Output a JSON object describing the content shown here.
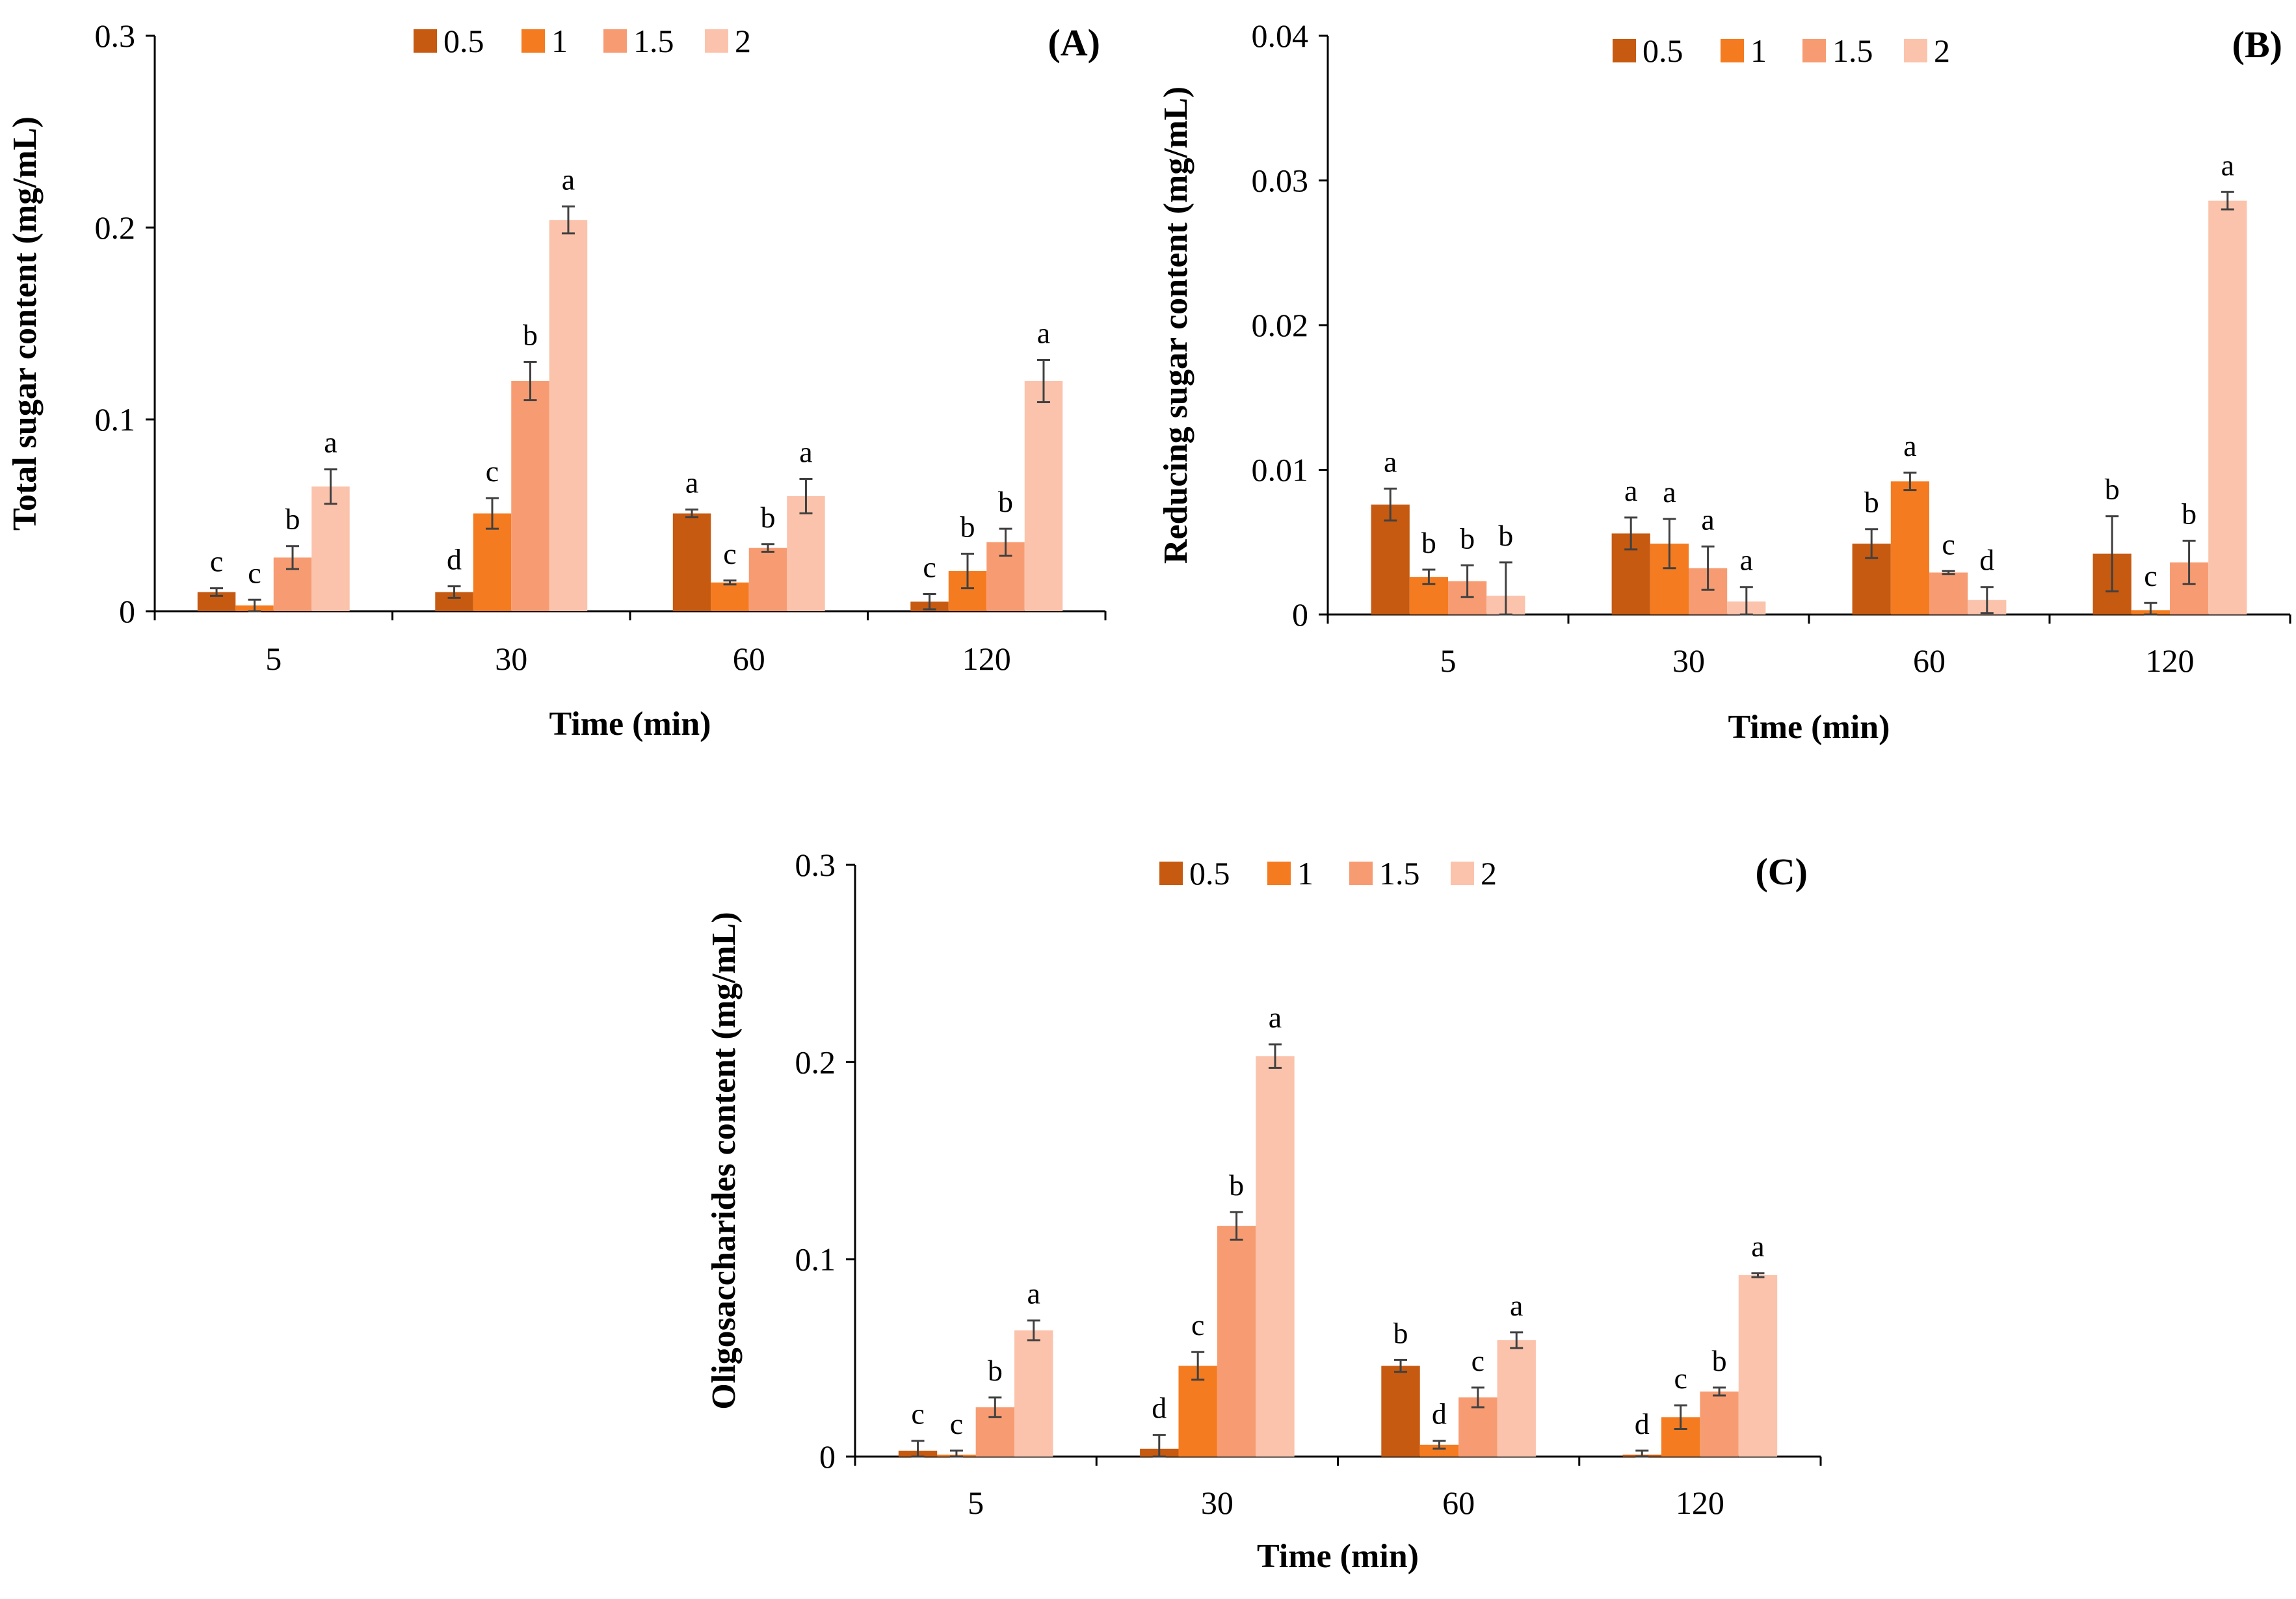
{
  "legend_title": "",
  "chart_data": [
    {
      "type": "bar",
      "panel_label": "(A)",
      "title": "",
      "xlabel": "Time (min)",
      "ylabel": "Total sugar content (mg/mL)",
      "categories": [
        "5",
        "30",
        "60",
        "120"
      ],
      "ylim": [
        0,
        0.3
      ],
      "yticks": [
        "0",
        "0.1",
        "0.2",
        "0.3"
      ],
      "yticks_values": [
        0,
        0.1,
        0.2,
        0.3
      ],
      "grid": false,
      "legend_position": "top",
      "series": [
        {
          "name": "0.5",
          "color": "#C65A11",
          "values": [
            0.01,
            0.01,
            0.051,
            0.005
          ],
          "errors": [
            0.002,
            0.003,
            0.002,
            0.004
          ],
          "letters": [
            "c",
            "d",
            "a",
            "c"
          ]
        },
        {
          "name": "1",
          "color": "#F47B20",
          "values": [
            0.003,
            0.051,
            0.015,
            0.021
          ],
          "errors": [
            0.003,
            0.008,
            0.001,
            0.009
          ],
          "letters": [
            "c",
            "c",
            "c",
            "b"
          ]
        },
        {
          "name": "1.5",
          "color": "#F79C72",
          "values": [
            0.028,
            0.12,
            0.033,
            0.036
          ],
          "errors": [
            0.006,
            0.01,
            0.002,
            0.007
          ],
          "letters": [
            "b",
            "b",
            "b",
            "b"
          ]
        },
        {
          "name": "2",
          "color": "#FBC3AC",
          "values": [
            0.065,
            0.204,
            0.06,
            0.12
          ],
          "errors": [
            0.009,
            0.007,
            0.009,
            0.011
          ],
          "letters": [
            "a",
            "a",
            "a",
            "a"
          ]
        }
      ]
    },
    {
      "type": "bar",
      "panel_label": "(B)",
      "title": "",
      "xlabel": "Time (min)",
      "ylabel": "Reducing sugar content (mg/mL)",
      "categories": [
        "5",
        "30",
        "60",
        "120"
      ],
      "ylim": [
        0,
        0.04
      ],
      "yticks": [
        "0",
        "0.01",
        "0.02",
        "0.03",
        "0.04"
      ],
      "yticks_values": [
        0,
        0.01,
        0.02,
        0.03,
        0.04
      ],
      "grid": false,
      "legend_position": "top",
      "series": [
        {
          "name": "0.5",
          "color": "#C65A11",
          "values": [
            0.0076,
            0.0056,
            0.0049,
            0.0042
          ],
          "errors": [
            0.0011,
            0.0011,
            0.001,
            0.0026
          ],
          "letters": [
            "a",
            "a",
            "b",
            "b"
          ]
        },
        {
          "name": "1",
          "color": "#F47B20",
          "values": [
            0.0026,
            0.0049,
            0.0092,
            0.0003
          ],
          "errors": [
            0.0005,
            0.0017,
            0.0006,
            0.0005
          ],
          "letters": [
            "b",
            "a",
            "a",
            "c"
          ]
        },
        {
          "name": "1.5",
          "color": "#F79C72",
          "values": [
            0.0023,
            0.0032,
            0.0029,
            0.0036
          ],
          "errors": [
            0.0011,
            0.0015,
            0.0001,
            0.0015
          ],
          "letters": [
            "b",
            "a",
            "c",
            "b"
          ]
        },
        {
          "name": "2",
          "color": "#FBC3AC",
          "values": [
            0.0013,
            0.0009,
            0.001,
            0.0286
          ],
          "errors": [
            0.0023,
            0.001,
            0.0009,
            0.0006
          ],
          "letters": [
            "b",
            "a",
            "d",
            "a"
          ]
        }
      ]
    },
    {
      "type": "bar",
      "panel_label": "(C)",
      "title": "",
      "xlabel": "Time (min)",
      "ylabel": "Oligosaccharides content (mg/mL)",
      "categories": [
        "5",
        "30",
        "60",
        "120"
      ],
      "ylim": [
        0,
        0.3
      ],
      "yticks": [
        "0",
        "0.1",
        "0.2",
        "0.3"
      ],
      "yticks_values": [
        0,
        0.1,
        0.2,
        0.3
      ],
      "grid": false,
      "legend_position": "top",
      "series": [
        {
          "name": "0.5",
          "color": "#C65A11",
          "values": [
            0.003,
            0.004,
            0.046,
            0.001
          ],
          "errors": [
            0.005,
            0.007,
            0.003,
            0.002
          ],
          "letters": [
            "c",
            "d",
            "b",
            "d"
          ]
        },
        {
          "name": "1",
          "color": "#F47B20",
          "values": [
            0.001,
            0.046,
            0.006,
            0.02
          ],
          "errors": [
            0.002,
            0.007,
            0.002,
            0.006
          ],
          "letters": [
            "c",
            "c",
            "d",
            "c"
          ]
        },
        {
          "name": "1.5",
          "color": "#F79C72",
          "values": [
            0.025,
            0.117,
            0.03,
            0.033
          ],
          "errors": [
            0.005,
            0.007,
            0.005,
            0.002
          ],
          "letters": [
            "b",
            "b",
            "c",
            "b"
          ]
        },
        {
          "name": "2",
          "color": "#FBC3AC",
          "values": [
            0.064,
            0.203,
            0.059,
            0.092
          ],
          "errors": [
            0.005,
            0.006,
            0.004,
            0.001
          ],
          "letters": [
            "a",
            "a",
            "a",
            "a"
          ]
        }
      ]
    }
  ]
}
